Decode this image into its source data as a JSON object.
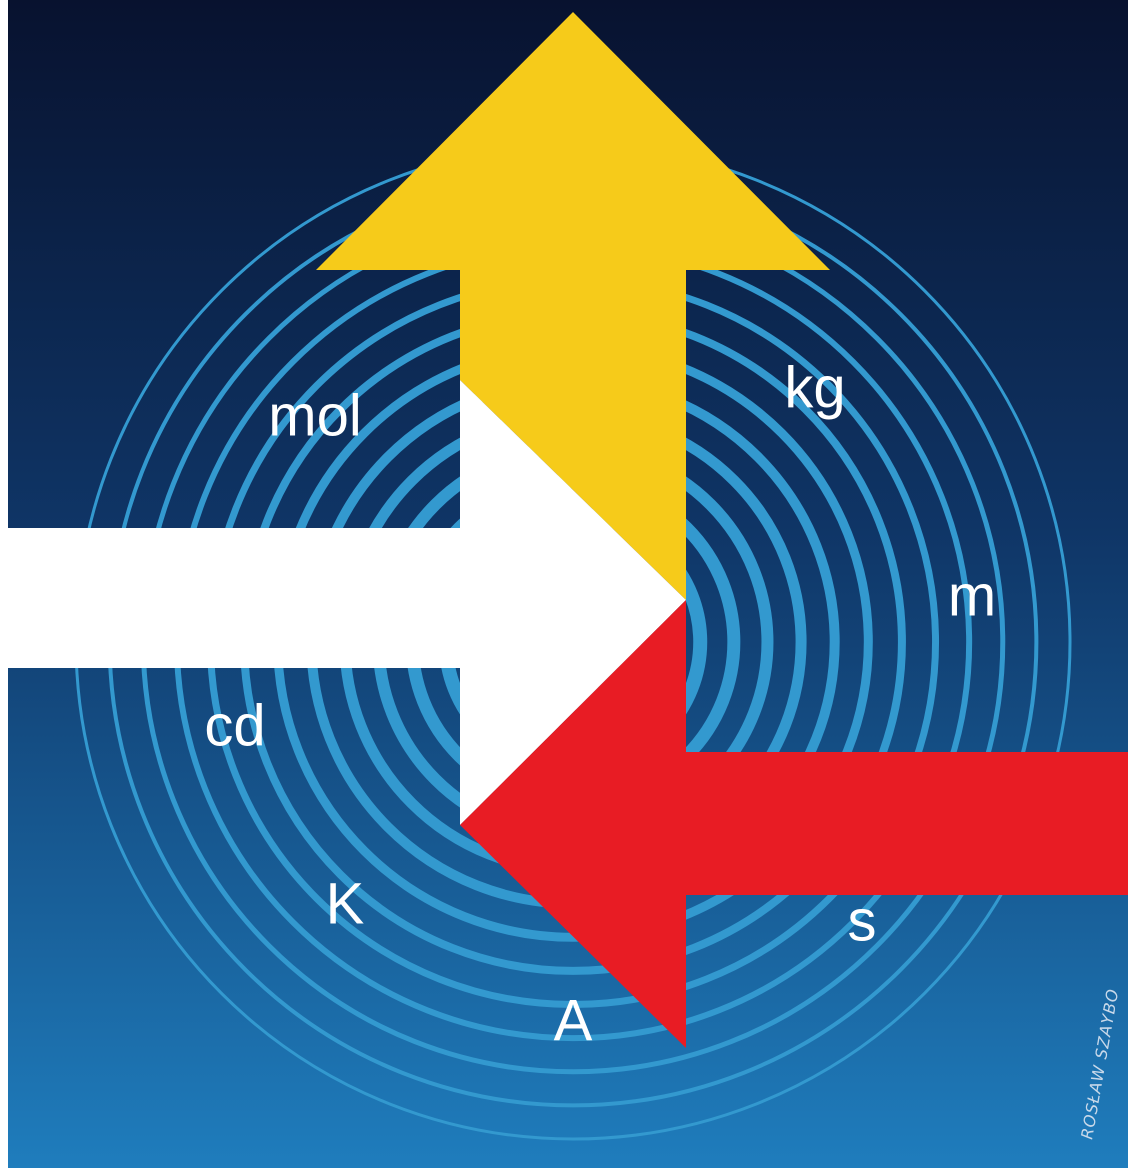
{
  "units": [
    "mol",
    "kg",
    "m",
    "cd",
    "K",
    "s",
    "A"
  ],
  "signature": "ROSŁAW SZAYBO"
}
